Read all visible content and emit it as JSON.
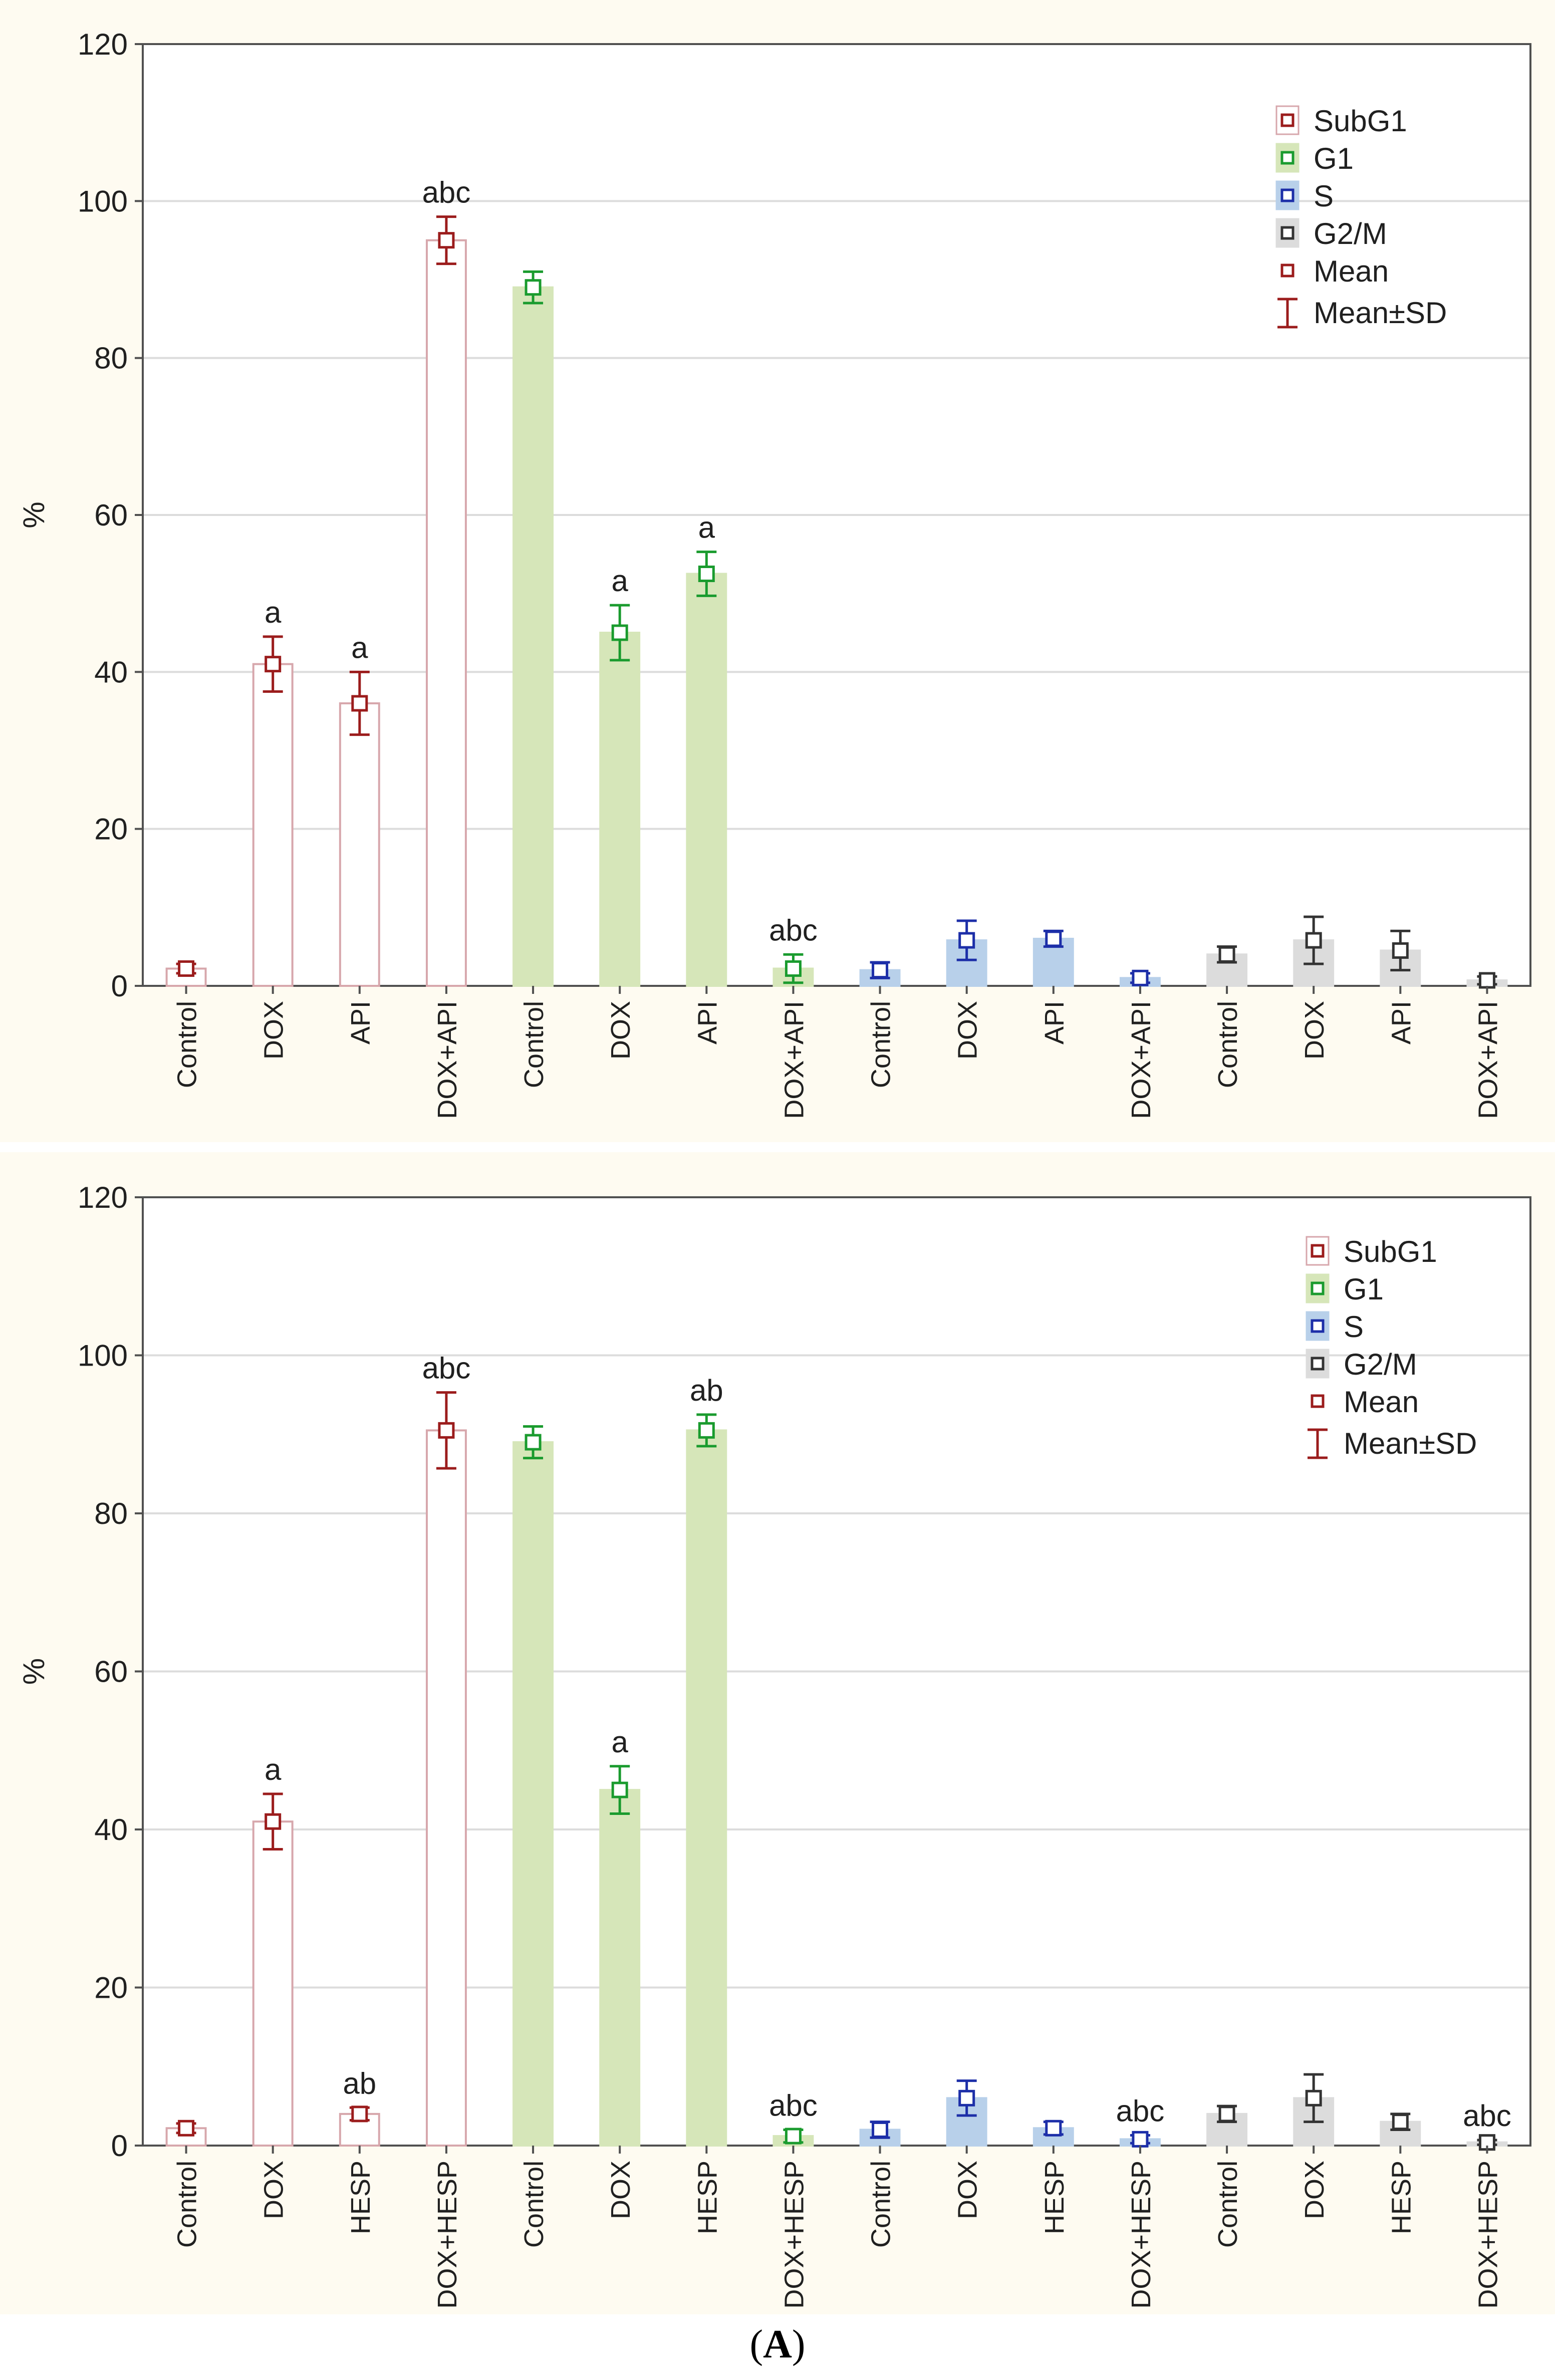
{
  "figure_caption": {
    "open": "(",
    "label": "A",
    "close": ")"
  },
  "colors": {
    "panel_bg": "#fefbf1",
    "plot_bg": "#ffffff",
    "subg1_fill": "#ffffff",
    "subg1_edge": "#d7a7ac",
    "subg1_marker": "#9b1c1c",
    "g1_fill": "#d6e6b9",
    "g1_marker": "#1a9b2e",
    "s_fill": "#b8d0ea",
    "s_marker": "#1c2ea8",
    "g2m_fill": "#dcdcdc",
    "g2m_marker": "#333333",
    "grid": "#dcdcdc",
    "axis": "#505050"
  },
  "chart_data": [
    {
      "type": "bar",
      "ylabel": "%",
      "ylim": [
        0,
        120
      ],
      "yticks": [
        0,
        20,
        40,
        60,
        80,
        100,
        120
      ],
      "grid": true,
      "legend_position": "top-right",
      "legend": [
        "SubG1",
        "G1",
        "S",
        "G2/M",
        "Mean",
        "Mean±SD"
      ],
      "series": [
        {
          "name": "SubG1",
          "key": "subg1",
          "categories": [
            "Control",
            "DOX",
            "API",
            "DOX+API"
          ],
          "values": [
            2.2,
            41,
            36,
            95
          ],
          "sd": [
            0.6,
            3.5,
            4,
            3
          ],
          "annotations": [
            "",
            "a",
            "a",
            "abc"
          ]
        },
        {
          "name": "G1",
          "key": "g1",
          "categories": [
            "Control",
            "DOX",
            "API",
            "DOX+API"
          ],
          "values": [
            89,
            45,
            52.5,
            2.2
          ],
          "sd": [
            2,
            3.5,
            2.8,
            1.8
          ],
          "annotations": [
            "",
            "a",
            "a",
            "abc"
          ]
        },
        {
          "name": "S",
          "key": "s",
          "categories": [
            "Control",
            "DOX",
            "API",
            "DOX+API"
          ],
          "values": [
            2,
            5.8,
            6,
            1
          ],
          "sd": [
            1,
            2.5,
            1,
            0.6
          ],
          "annotations": [
            "",
            "",
            "",
            ""
          ]
        },
        {
          "name": "G2/M",
          "key": "g2m",
          "categories": [
            "Control",
            "DOX",
            "API",
            "DOX+API"
          ],
          "values": [
            4,
            5.8,
            4.5,
            0.7
          ],
          "sd": [
            1,
            3,
            2.5,
            0.5
          ],
          "annotations": [
            "",
            "",
            "",
            ""
          ]
        }
      ]
    },
    {
      "type": "bar",
      "ylabel": "%",
      "ylim": [
        0,
        120
      ],
      "yticks": [
        0,
        20,
        40,
        60,
        80,
        100,
        120
      ],
      "grid": true,
      "legend_position": "top-right",
      "legend": [
        "SubG1",
        "G1",
        "S",
        "G2/M",
        "Mean",
        "Mean±SD"
      ],
      "series": [
        {
          "name": "SubG1",
          "key": "subg1",
          "categories": [
            "Control",
            "DOX",
            "HESP",
            "DOX+HESP"
          ],
          "values": [
            2.2,
            41,
            4,
            90.5
          ],
          "sd": [
            0.6,
            3.5,
            0.8,
            4.8
          ],
          "annotations": [
            "",
            "a",
            "ab",
            "abc"
          ]
        },
        {
          "name": "G1",
          "key": "g1",
          "categories": [
            "Control",
            "DOX",
            "HESP",
            "DOX+HESP"
          ],
          "values": [
            89,
            45,
            90.5,
            1.2
          ],
          "sd": [
            2,
            3,
            2,
            0.8
          ],
          "annotations": [
            "",
            "a",
            "ab",
            "abc"
          ]
        },
        {
          "name": "S",
          "key": "s",
          "categories": [
            "Control",
            "DOX",
            "HESP",
            "DOX+HESP"
          ],
          "values": [
            2,
            6,
            2.2,
            0.8
          ],
          "sd": [
            1,
            2.2,
            0.8,
            0.5
          ],
          "annotations": [
            "",
            "",
            "",
            "abc"
          ]
        },
        {
          "name": "G2/M",
          "key": "g2m",
          "categories": [
            "Control",
            "DOX",
            "HESP",
            "DOX+HESP"
          ],
          "values": [
            4,
            6,
            3,
            0.4
          ],
          "sd": [
            1,
            3,
            1,
            0.3
          ],
          "annotations": [
            "",
            "",
            "",
            "abc"
          ]
        }
      ]
    }
  ]
}
